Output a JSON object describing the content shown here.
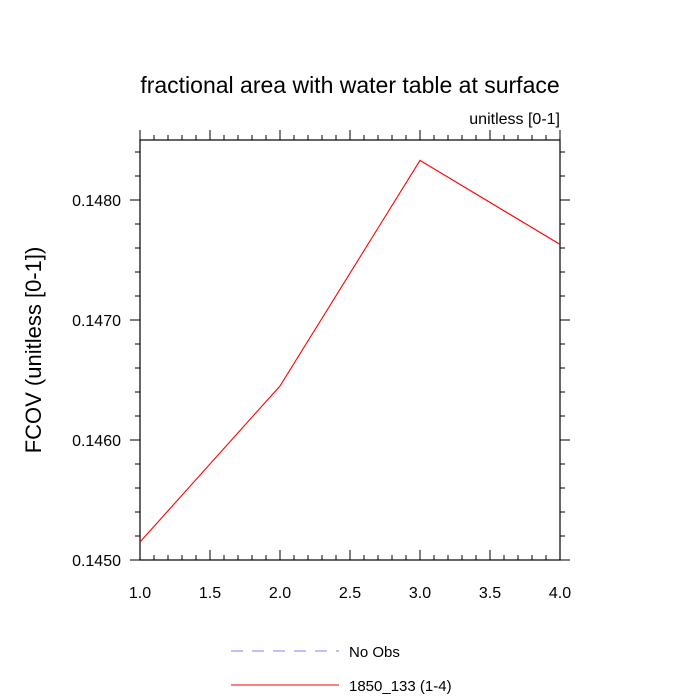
{
  "chart_data": {
    "type": "line",
    "title": "fractional area with water table at surface",
    "subtitle": "unitless [0-1]",
    "xlabel": "",
    "ylabel": "FCOV  (unitless [0-1])",
    "xlim": [
      1.0,
      4.0
    ],
    "ylim": [
      0.145,
      0.1485
    ],
    "x_ticks": [
      "1.0",
      "1.5",
      "2.0",
      "2.5",
      "3.0",
      "3.5",
      "4.0"
    ],
    "y_ticks": [
      "0.1450",
      "0.1460",
      "0.1470",
      "0.1480"
    ],
    "grid": false,
    "legend_position": "bottom",
    "x": [
      1.0,
      2.0,
      3.0,
      4.0
    ],
    "series": [
      {
        "name": "1850_133 (1-4)",
        "color": "#ff0000",
        "style": "solid",
        "values": [
          0.14515,
          0.14645,
          0.14833,
          0.14763
        ]
      }
    ],
    "legend": [
      {
        "label": "No Obs",
        "color": "#8080ff",
        "style": "dashed"
      },
      {
        "label": "1850_133 (1-4)",
        "color": "#ff0000",
        "style": "solid"
      }
    ]
  }
}
